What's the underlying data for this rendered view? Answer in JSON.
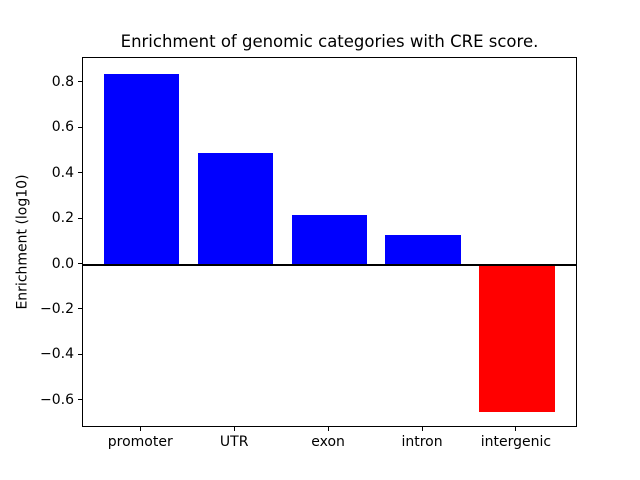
{
  "chart_data": {
    "type": "bar",
    "title": "Enrichment of genomic categories with CRE score.",
    "xlabel": "",
    "ylabel": "Enrichment (log10)",
    "categories": [
      "promoter",
      "UTR",
      "exon",
      "intron",
      "intergenic"
    ],
    "values": [
      0.84,
      0.49,
      0.22,
      0.13,
      -0.65
    ],
    "bar_colors": [
      "#0000ff",
      "#0000ff",
      "#0000ff",
      "#0000ff",
      "#ff0000"
    ],
    "positive_color": "#0000ff",
    "negative_color": "#ff0000",
    "yticks": [
      0.8,
      0.6,
      0.4,
      0.2,
      0.0,
      -0.2,
      -0.4,
      -0.6
    ],
    "ylim": [
      -0.72,
      0.91
    ],
    "xlim": [
      -0.62,
      4.65
    ],
    "bar_width_fraction": 0.8,
    "grid": false,
    "zero_line": true,
    "legend": null,
    "background_color": "#ffffff",
    "frame_color": "#000000"
  }
}
